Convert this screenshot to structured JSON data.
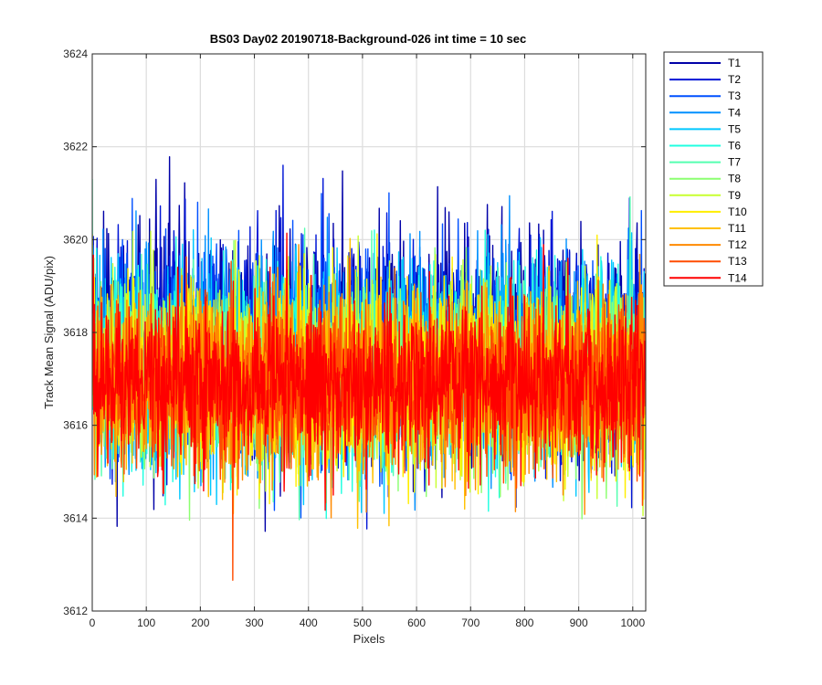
{
  "chart_data": {
    "type": "line",
    "title": "BS03 Day02 20190718-Background-026 int time = 10 sec",
    "xlabel": "Pixels",
    "ylabel": "Track Mean Signal (ADU/pix)",
    "xlim": [
      0,
      1024
    ],
    "ylim": [
      3612,
      3624
    ],
    "xticks": [
      0,
      100,
      200,
      300,
      400,
      500,
      600,
      700,
      800,
      900,
      1000
    ],
    "yticks": [
      3612,
      3614,
      3616,
      3618,
      3620,
      3622,
      3624
    ],
    "grid": true,
    "legend_position": "outside-top-right",
    "noise": {
      "description_of_series": "Each series is a noisy per-pixel trace over 1024 pixels",
      "points_per_series": 1024
    },
    "series": [
      {
        "name": "T1",
        "color": "#0000a8",
        "mean": 3617.8,
        "spread": 2.2
      },
      {
        "name": "T2",
        "color": "#0015d6",
        "mean": 3617.7,
        "spread": 2.1
      },
      {
        "name": "T3",
        "color": "#0050ff",
        "mean": 3617.5,
        "spread": 2.0
      },
      {
        "name": "T4",
        "color": "#0090ff",
        "mean": 3617.4,
        "spread": 2.0
      },
      {
        "name": "T5",
        "color": "#00c8ff",
        "mean": 3617.3,
        "spread": 2.0
      },
      {
        "name": "T6",
        "color": "#20ffe0",
        "mean": 3617.2,
        "spread": 1.9
      },
      {
        "name": "T7",
        "color": "#55ffb0",
        "mean": 3617.1,
        "spread": 1.9
      },
      {
        "name": "T8",
        "color": "#8cff70",
        "mean": 3617.0,
        "spread": 1.8
      },
      {
        "name": "T9",
        "color": "#c8ff30",
        "mean": 3617.0,
        "spread": 1.8
      },
      {
        "name": "T10",
        "color": "#ffee00",
        "mean": 3616.9,
        "spread": 1.8
      },
      {
        "name": "T11",
        "color": "#ffc000",
        "mean": 3616.9,
        "spread": 1.7
      },
      {
        "name": "T12",
        "color": "#ff8a00",
        "mean": 3616.9,
        "spread": 1.7
      },
      {
        "name": "T13",
        "color": "#ff4c00",
        "mean": 3616.9,
        "spread": 1.6
      },
      {
        "name": "T14",
        "color": "#ff0000",
        "mean": 3616.9,
        "spread": 1.6
      }
    ]
  }
}
